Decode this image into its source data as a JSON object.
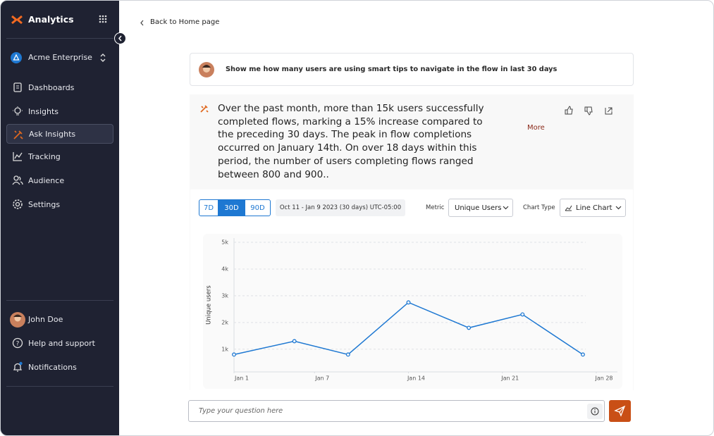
{
  "sidebar": {
    "brand": "Analytics",
    "workspace": "Acme Enterprise",
    "nav": [
      "Dashboards",
      "Insights",
      "Ask Insights",
      "Tracking",
      "Audience",
      "Settings"
    ],
    "user": "John Doe",
    "footer": [
      "Help and support",
      "Notifications"
    ]
  },
  "main": {
    "back": "Back to Home page",
    "question": "Show me how many users are using smart tips to navigate in the flow in last 30 days",
    "answer": "Over the past month, more than 15k users successfully completed flows, marking a 15% increase compared to the preceding 30 days. The peak in flow completions occurred on January 14th. On over 18 days within this period, the number of users completing flows ranged between 800 and 900..",
    "more": "More",
    "controls": {
      "ranges": [
        "7D",
        "30D",
        "90D"
      ],
      "date_range": "Oct 11 - Jan 9 2023 (30 days) UTC-05:00",
      "metric_label": "Metric",
      "metric": "Unique Users",
      "chart_type_label": "Chart Type",
      "chart_type": "Line Chart"
    },
    "input_placeholder": "Type your question here"
  },
  "chart_data": {
    "type": "line",
    "y_label": "Unique users",
    "x": [
      1,
      5.5,
      9.5,
      14,
      18.5,
      22.5,
      27
    ],
    "series": [
      {
        "name": "Unique Users",
        "color": "#1e78d2",
        "values": [
          800,
          1300,
          800,
          2750,
          1800,
          2300,
          800
        ]
      }
    ],
    "xlim": [
      1,
      28
    ],
    "xticks": [
      {
        "value": 1,
        "label": "Jan 1"
      },
      {
        "value": 7,
        "label": "Jan 7"
      },
      {
        "value": 14,
        "label": "Jan 14"
      },
      {
        "value": 21,
        "label": "Jan 21"
      },
      {
        "value": 28,
        "label": "Jan 28"
      }
    ],
    "ylim": [
      150,
      5000
    ],
    "yticks": [
      {
        "value": 1000,
        "label": "1k"
      },
      {
        "value": 2000,
        "label": "2k"
      },
      {
        "value": 3000,
        "label": "3k"
      },
      {
        "value": 4000,
        "label": "4k"
      },
      {
        "value": 5000,
        "label": "5k"
      }
    ],
    "grid": true
  }
}
